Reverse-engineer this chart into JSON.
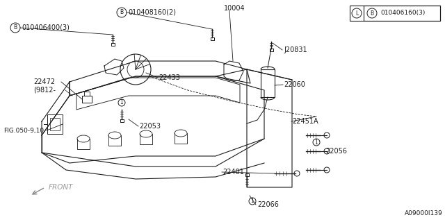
{
  "bg_color": "#ffffff",
  "line_color": "#1a1a1a",
  "fig_width": 6.4,
  "fig_height": 3.2,
  "dpi": 100,
  "labels": {
    "B_top_left": "010406400(3)",
    "B_top_center": "010408160(2)",
    "legend_I": "L",
    "legend_B": "B",
    "legend_text": "010406160(3)",
    "part_22472": "22472",
    "part_22472b": "(9812-",
    "part_22433": "22433",
    "part_10004": "10004",
    "part_J20831": "J20831",
    "part_22060": "22060",
    "part_22451A": "22451A",
    "part_22053": "22053",
    "part_22401": "22401",
    "part_22056": "22056",
    "part_22066": "22066",
    "fig_ref": "FIG.050-9,10",
    "front_label": "FRONT",
    "diagram_id": "A09000I139"
  }
}
